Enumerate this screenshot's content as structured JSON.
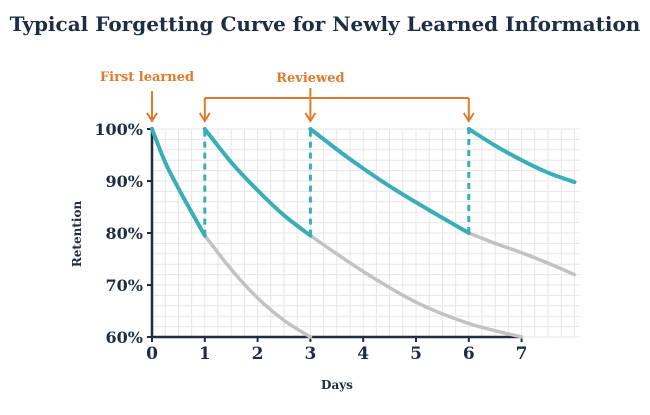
{
  "chart_data": {
    "type": "line",
    "title": "Typical Forgetting Curve for Newly Learned Information",
    "xlabel": "Days",
    "ylabel": "Retention",
    "xlim": [
      0,
      8
    ],
    "ylim": [
      60,
      100
    ],
    "x_ticks": [
      "0",
      "1",
      "2",
      "3",
      "4",
      "5",
      "6",
      "7"
    ],
    "y_ticks": [
      "100%",
      "90%",
      "80%",
      "70%",
      "60%"
    ],
    "grid": true,
    "colors": {
      "active": "#3aaeb8",
      "decay": "#c2c2c2",
      "annotation": "#e07a2b",
      "text": "#1f2d44",
      "grid": "#e6e6e6"
    },
    "annotations": [
      {
        "text": "First learned",
        "x": [
          0
        ]
      },
      {
        "text": "Reviewed",
        "x": [
          1,
          3,
          6
        ]
      }
    ],
    "series": [
      {
        "role": "active",
        "points": [
          [
            0,
            100
          ],
          [
            0.25,
            93.6
          ],
          [
            0.5,
            88.6
          ],
          [
            0.75,
            84.0
          ],
          [
            1,
            79.5
          ]
        ]
      },
      {
        "role": "active",
        "points": [
          [
            1,
            100
          ],
          [
            1.5,
            93.6
          ],
          [
            2,
            88.2
          ],
          [
            2.5,
            83.4
          ],
          [
            3,
            79.5
          ]
        ]
      },
      {
        "role": "active",
        "points": [
          [
            3,
            100
          ],
          [
            3.75,
            94.2
          ],
          [
            4.5,
            89.0
          ],
          [
            5.25,
            84.4
          ],
          [
            6,
            80.0
          ]
        ]
      },
      {
        "role": "active",
        "points": [
          [
            6,
            100
          ],
          [
            6.5,
            96.8
          ],
          [
            7,
            94.0
          ],
          [
            7.5,
            91.6
          ],
          [
            8,
            89.8
          ]
        ]
      },
      {
        "role": "decay",
        "points": [
          [
            1,
            79.5
          ],
          [
            1.5,
            73.0
          ],
          [
            2,
            67.5
          ],
          [
            2.5,
            63.2
          ],
          [
            3,
            60.0
          ]
        ]
      },
      {
        "role": "decay",
        "points": [
          [
            3,
            79.5
          ],
          [
            4,
            72.6
          ],
          [
            5,
            66.7
          ],
          [
            6,
            62.6
          ],
          [
            7,
            60.0
          ]
        ]
      },
      {
        "role": "decay",
        "points": [
          [
            6,
            80.0
          ],
          [
            6.5,
            78.0
          ],
          [
            7,
            76.2
          ],
          [
            7.5,
            74.2
          ],
          [
            8,
            72.0
          ]
        ]
      },
      {
        "role": "review-jump",
        "points": [
          [
            1,
            79.5
          ],
          [
            1,
            100
          ]
        ]
      },
      {
        "role": "review-jump",
        "points": [
          [
            3,
            79.5
          ],
          [
            3,
            100
          ]
        ]
      },
      {
        "role": "review-jump",
        "points": [
          [
            6,
            80.0
          ],
          [
            6,
            100
          ]
        ]
      }
    ]
  }
}
